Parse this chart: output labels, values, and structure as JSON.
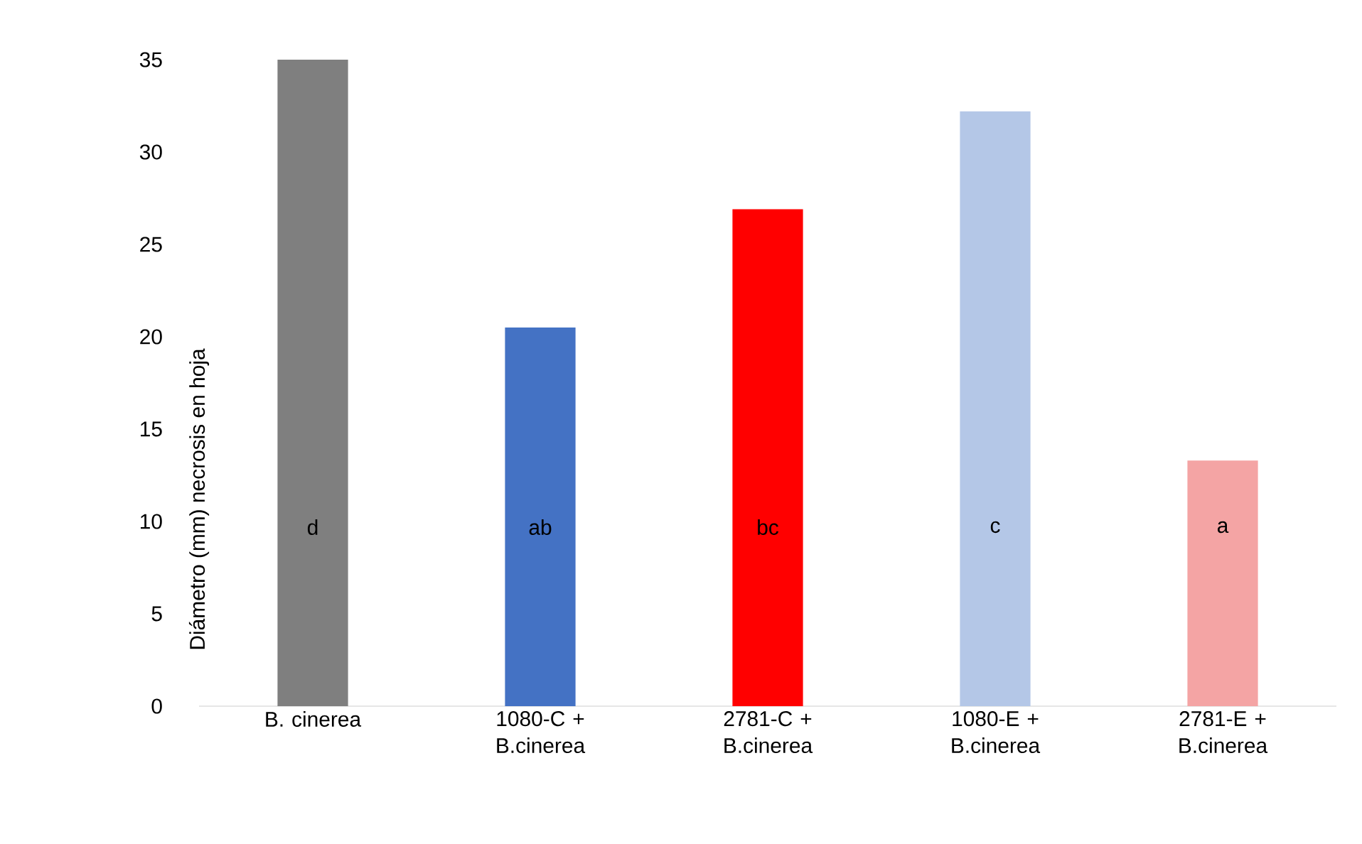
{
  "chart_data": {
    "type": "bar",
    "ylabel": "Diámetro (mm) necrosis en hoja",
    "categories": [
      "B. cinerea",
      "1080-C + B.cinerea",
      "2781-C + B.cinerea",
      "1080-E + B.cinerea",
      "2781-E + B.cinerea"
    ],
    "values": [
      35,
      20.5,
      26.9,
      32.2,
      13.3
    ],
    "colors": [
      "#7f7f7f",
      "#4472c4",
      "#ff0000",
      "#b4c7e7",
      "#f4a4a4"
    ],
    "ylim": [
      0,
      35
    ],
    "yticks": [
      0,
      5,
      10,
      15,
      20,
      25,
      30,
      35
    ],
    "annotations": [
      "d",
      "ab",
      "bc",
      "c",
      "a"
    ]
  }
}
